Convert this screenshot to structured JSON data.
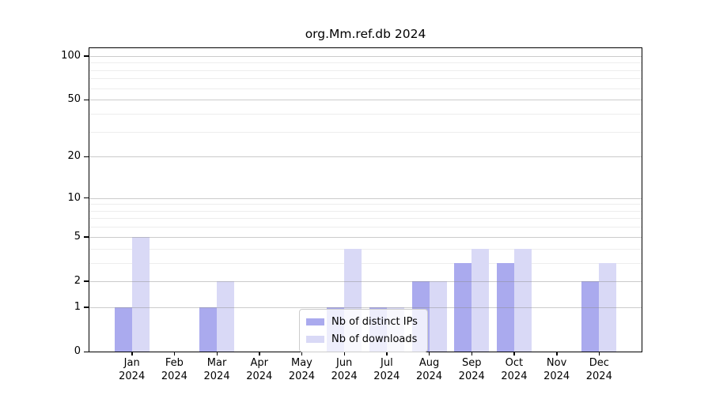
{
  "title": "org.Mm.ref.db 2024",
  "legend": {
    "items": [
      {
        "label": "Nb of distinct IPs",
        "color": "#aaaaee"
      },
      {
        "label": "Nb of downloads",
        "color": "#d9d9f6"
      }
    ]
  },
  "y_axis": {
    "tick_labels": [
      "0",
      "1",
      "2",
      "5",
      "10",
      "20",
      "50",
      "100"
    ]
  },
  "x_axis": {
    "months": [
      "Jan",
      "Feb",
      "Mar",
      "Apr",
      "May",
      "Jun",
      "Jul",
      "Aug",
      "Sep",
      "Oct",
      "Nov",
      "Dec"
    ],
    "year": "2024"
  },
  "colors": {
    "distinct_ips_bar": "#aaaaee",
    "downloads_bar": "#d9d9f6",
    "major_gridline": "#cccccc",
    "minor_gridline": "#ededed",
    "axis": "#000000"
  },
  "chart_data": {
    "type": "bar",
    "title": "org.Mm.ref.db 2024",
    "categories": [
      "Jan 2024",
      "Feb 2024",
      "Mar 2024",
      "Apr 2024",
      "May 2024",
      "Jun 2024",
      "Jul 2024",
      "Aug 2024",
      "Sep 2024",
      "Oct 2024",
      "Nov 2024",
      "Dec 2024"
    ],
    "series": [
      {
        "name": "Nb of distinct IPs",
        "color": "#aaaaee",
        "values": [
          1,
          0,
          1,
          0,
          0,
          1,
          1,
          2,
          3,
          3,
          0,
          2
        ]
      },
      {
        "name": "Nb of downloads",
        "color": "#d9d9f6",
        "values": [
          5,
          0,
          2,
          0,
          0,
          4,
          1,
          2,
          4,
          4,
          0,
          3
        ]
      }
    ],
    "xlabel": "",
    "ylabel": "",
    "y_scale": "log10(1+x)",
    "y_major_ticks": [
      0,
      1,
      2,
      5,
      10,
      20,
      50,
      100
    ],
    "y_minor_ticks": [
      3,
      4,
      6,
      7,
      8,
      9,
      30,
      40,
      60,
      70,
      80,
      90
    ],
    "ylim": [
      0,
      113
    ],
    "grid": true,
    "legend_position": "inside-bottom-center"
  }
}
